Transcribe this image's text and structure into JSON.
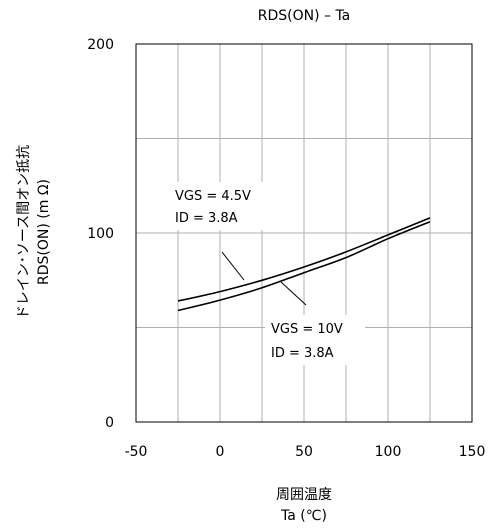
{
  "chart_data": {
    "type": "line",
    "title": "RDS(ON) – Ta",
    "xlabel_line1": "周囲温度",
    "xlabel_line2": "Ta (℃)",
    "ylabel_line1": "ドレイン･ソース間オン抵抗",
    "ylabel_line2": "RDS(ON) (m Ω)",
    "xlim": [
      -50,
      150
    ],
    "ylim": [
      0,
      200
    ],
    "x_ticks": [
      -50,
      0,
      50,
      100,
      150
    ],
    "x_tick_labels": [
      "-50",
      "0",
      "50",
      "100",
      "150"
    ],
    "y_ticks": [
      0,
      100,
      200
    ],
    "y_tick_labels": [
      "0",
      "100",
      "200"
    ],
    "x_minor_grid": [
      -25,
      25,
      75,
      125
    ],
    "y_minor_grid": [
      50,
      150
    ],
    "grid": true,
    "series": [
      {
        "name_line1": "VGS = 4.5V",
        "name_line2": "ID = 3.8A",
        "x": [
          -25,
          0,
          25,
          50,
          75,
          100,
          125
        ],
        "y": [
          64,
          69,
          75,
          82,
          90,
          99,
          108
        ]
      },
      {
        "name_line1": "VGS = 10V",
        "name_line2": "ID = 3.8A",
        "x": [
          -25,
          0,
          25,
          50,
          75,
          100,
          125
        ],
        "y": [
          59,
          64.5,
          71,
          79,
          87,
          97,
          106
        ]
      }
    ]
  }
}
